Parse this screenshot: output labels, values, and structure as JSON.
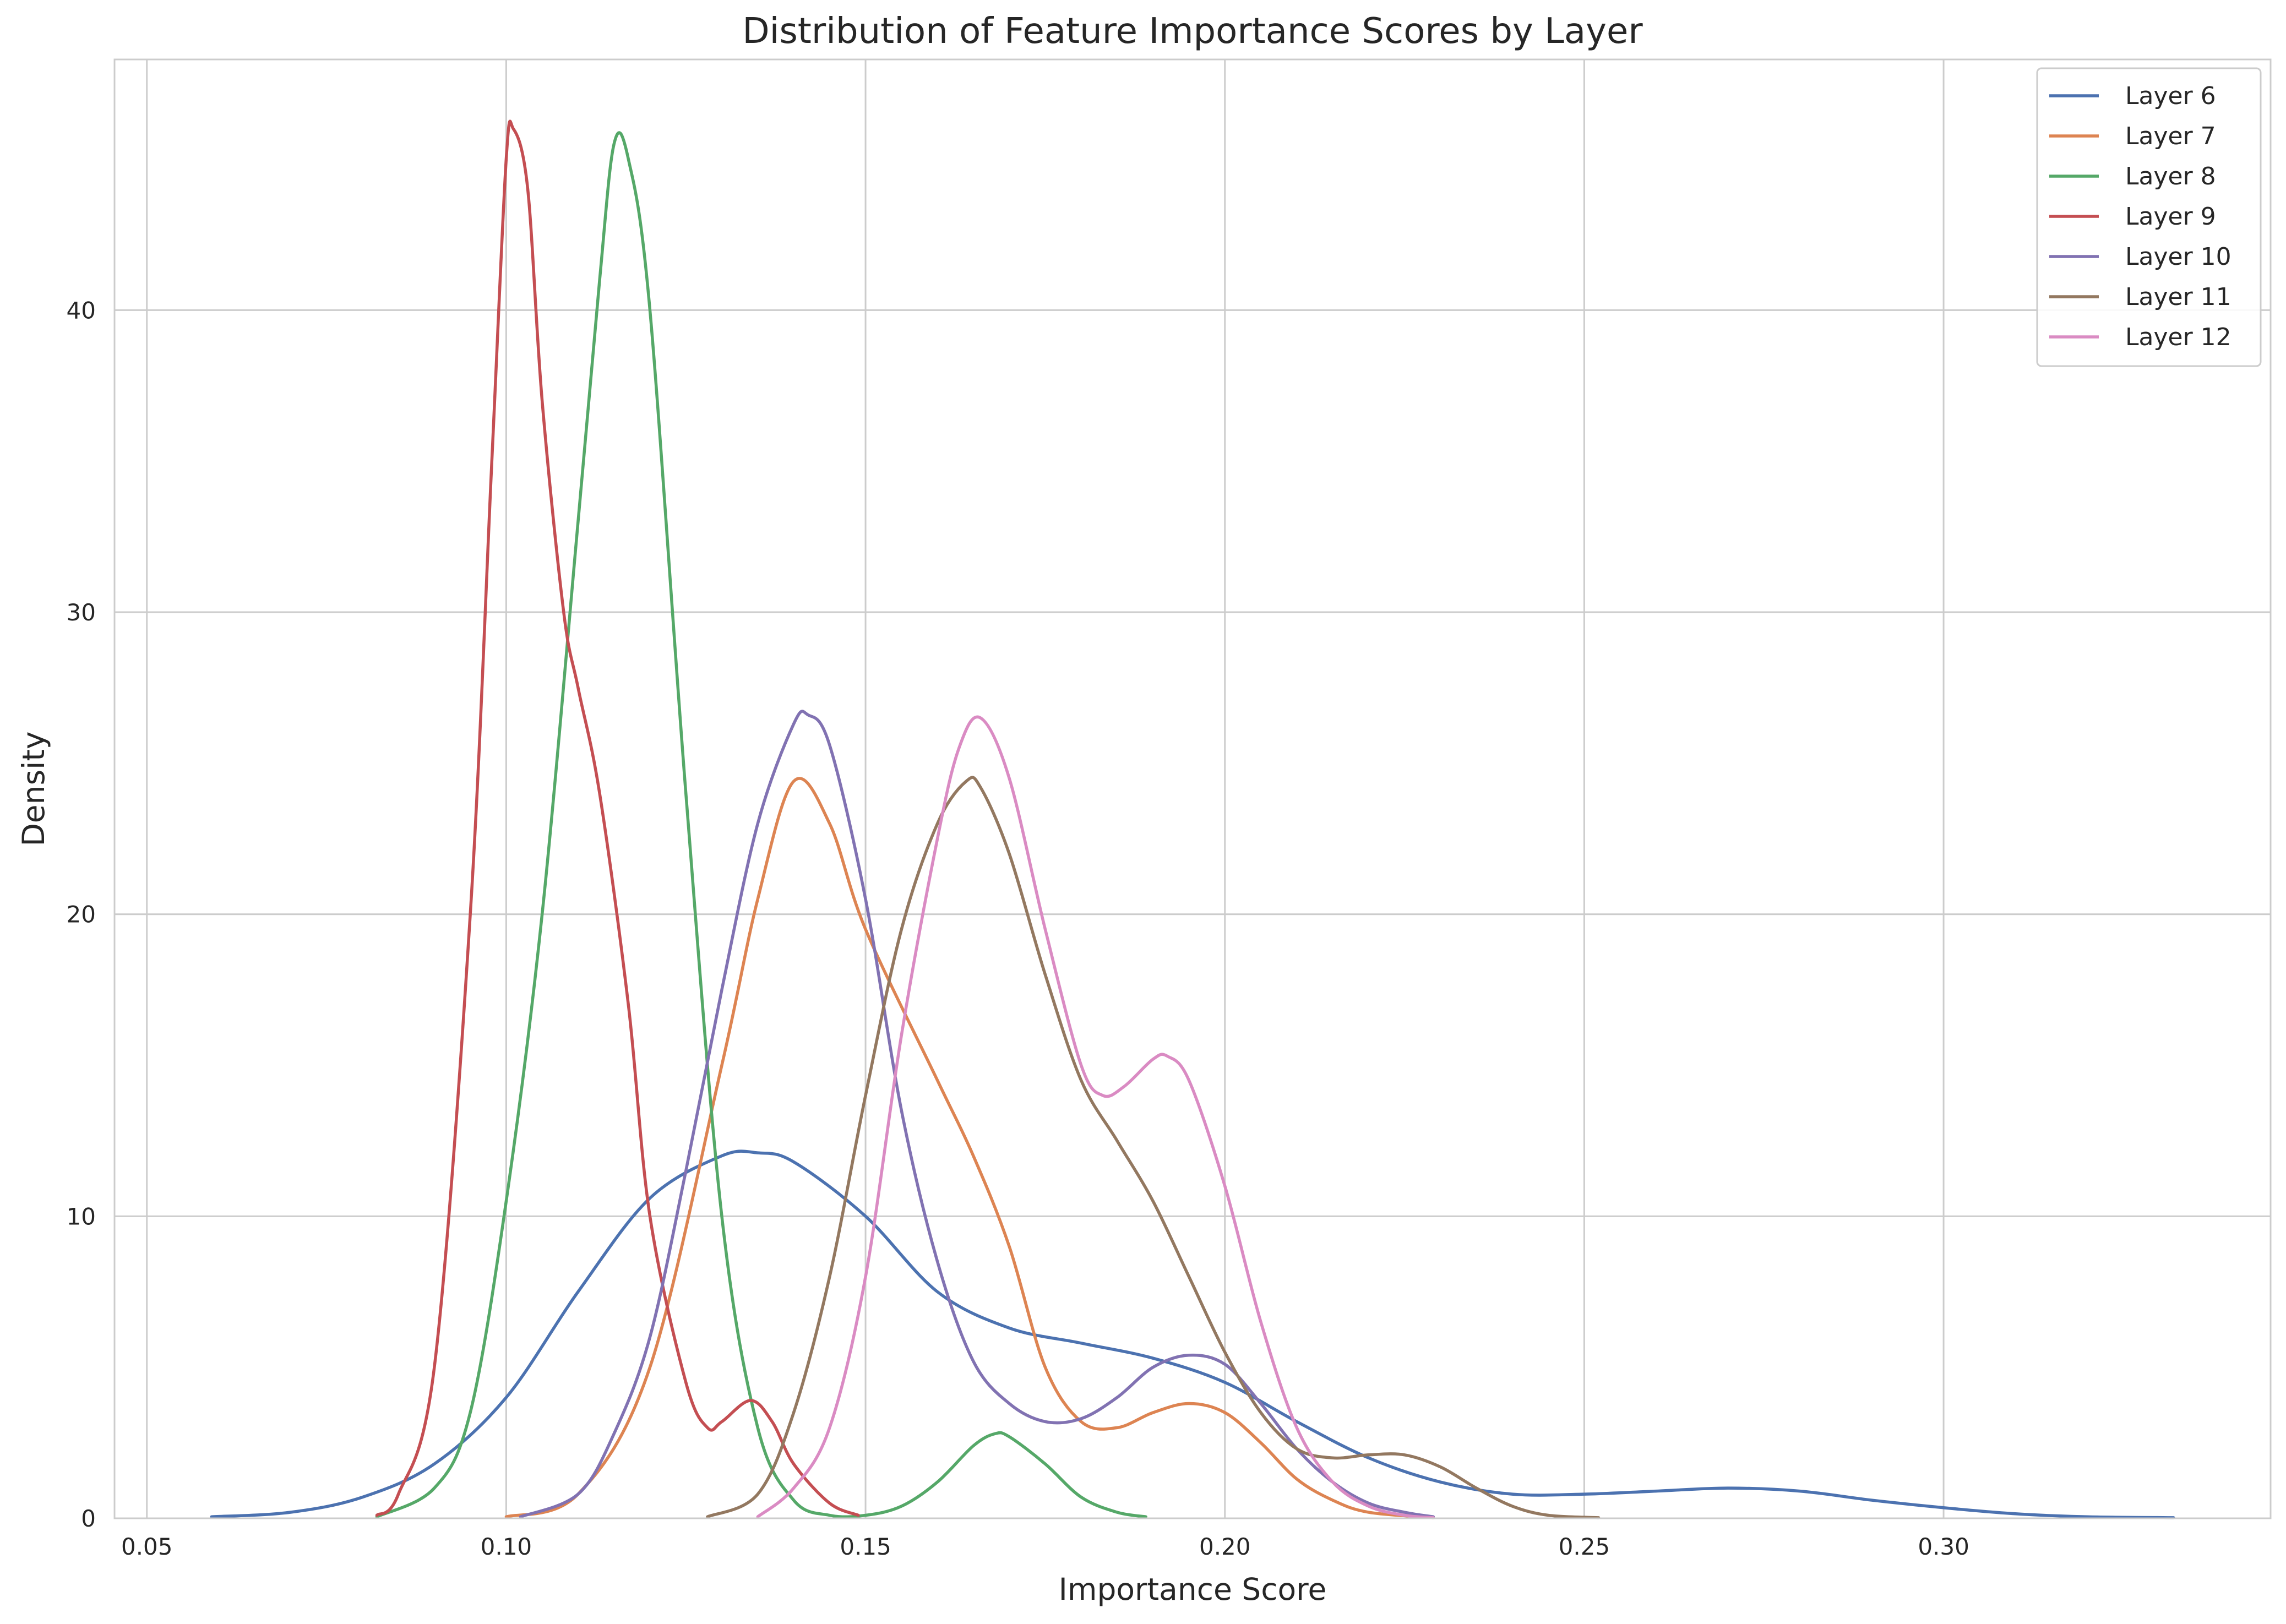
{
  "chart_data": {
    "type": "line",
    "title": "Distribution of Feature Importance Scores by Layer",
    "xlabel": "Importance Score",
    "ylabel": "Density",
    "xlim": [
      0.0455,
      0.3455
    ],
    "ylim": [
      0,
      48.3
    ],
    "x_ticks": [
      0.05,
      0.1,
      0.15,
      0.2,
      0.25,
      0.3
    ],
    "x_tick_labels": [
      "0.05",
      "0.10",
      "0.15",
      "0.20",
      "0.25",
      "0.30"
    ],
    "y_ticks": [
      0,
      10,
      20,
      30,
      40
    ],
    "y_tick_labels": [
      "0",
      "10",
      "20",
      "30",
      "40"
    ],
    "grid": true,
    "legend_position": "top-right",
    "series": [
      {
        "name": "Layer 6",
        "color": "#4c72b0",
        "points": [
          [
            0.059,
            0.05
          ],
          [
            0.07,
            0.2
          ],
          [
            0.08,
            0.7
          ],
          [
            0.09,
            1.8
          ],
          [
            0.1,
            4.0
          ],
          [
            0.11,
            7.5
          ],
          [
            0.12,
            10.6
          ],
          [
            0.13,
            12.0
          ],
          [
            0.135,
            12.1
          ],
          [
            0.14,
            11.8
          ],
          [
            0.15,
            10.0
          ],
          [
            0.16,
            7.5
          ],
          [
            0.17,
            6.3
          ],
          [
            0.18,
            5.8
          ],
          [
            0.19,
            5.3
          ],
          [
            0.2,
            4.5
          ],
          [
            0.21,
            3.2
          ],
          [
            0.22,
            2.0
          ],
          [
            0.23,
            1.2
          ],
          [
            0.24,
            0.8
          ],
          [
            0.25,
            0.8
          ],
          [
            0.26,
            0.9
          ],
          [
            0.27,
            1.0
          ],
          [
            0.28,
            0.9
          ],
          [
            0.29,
            0.6
          ],
          [
            0.3,
            0.35
          ],
          [
            0.31,
            0.15
          ],
          [
            0.32,
            0.05
          ],
          [
            0.332,
            0.02
          ]
        ]
      },
      {
        "name": "Layer 7",
        "color": "#dd8452",
        "points": [
          [
            0.1,
            0.05
          ],
          [
            0.11,
            0.8
          ],
          [
            0.12,
            5.0
          ],
          [
            0.13,
            15.0
          ],
          [
            0.135,
            20.5
          ],
          [
            0.14,
            24.4
          ],
          [
            0.145,
            23.0
          ],
          [
            0.15,
            19.5
          ],
          [
            0.16,
            14.5
          ],
          [
            0.165,
            12.0
          ],
          [
            0.17,
            9.0
          ],
          [
            0.175,
            5.0
          ],
          [
            0.18,
            3.2
          ],
          [
            0.185,
            3.0
          ],
          [
            0.19,
            3.5
          ],
          [
            0.195,
            3.8
          ],
          [
            0.2,
            3.5
          ],
          [
            0.205,
            2.5
          ],
          [
            0.21,
            1.3
          ],
          [
            0.215,
            0.6
          ],
          [
            0.22,
            0.2
          ],
          [
            0.229,
            0.02
          ]
        ]
      },
      {
        "name": "Layer 8",
        "color": "#55a868",
        "points": [
          [
            0.082,
            0.05
          ],
          [
            0.09,
            1.0
          ],
          [
            0.095,
            3.5
          ],
          [
            0.1,
            10.5
          ],
          [
            0.105,
            20.0
          ],
          [
            0.11,
            33.0
          ],
          [
            0.113,
            41.0
          ],
          [
            0.115,
            45.5
          ],
          [
            0.117,
            45.0
          ],
          [
            0.12,
            40.0
          ],
          [
            0.125,
            24.0
          ],
          [
            0.13,
            10.0
          ],
          [
            0.135,
            3.0
          ],
          [
            0.14,
            0.6
          ],
          [
            0.145,
            0.1
          ],
          [
            0.15,
            0.1
          ],
          [
            0.155,
            0.4
          ],
          [
            0.16,
            1.2
          ],
          [
            0.165,
            2.4
          ],
          [
            0.168,
            2.8
          ],
          [
            0.17,
            2.7
          ],
          [
            0.175,
            1.8
          ],
          [
            0.18,
            0.7
          ],
          [
            0.185,
            0.2
          ],
          [
            0.189,
            0.05
          ]
        ]
      },
      {
        "name": "Layer 9",
        "color": "#c44e52",
        "points": [
          [
            0.082,
            0.1
          ],
          [
            0.085,
            0.8
          ],
          [
            0.09,
            5.0
          ],
          [
            0.095,
            20.0
          ],
          [
            0.098,
            35.0
          ],
          [
            0.1,
            45.0
          ],
          [
            0.101,
            46.0
          ],
          [
            0.103,
            44.0
          ],
          [
            0.105,
            37.0
          ],
          [
            0.108,
            30.0
          ],
          [
            0.11,
            27.5
          ],
          [
            0.113,
            24.0
          ],
          [
            0.117,
            17.0
          ],
          [
            0.12,
            10.0
          ],
          [
            0.125,
            4.5
          ],
          [
            0.128,
            3.0
          ],
          [
            0.13,
            3.2
          ],
          [
            0.134,
            3.9
          ],
          [
            0.137,
            3.2
          ],
          [
            0.14,
            1.8
          ],
          [
            0.145,
            0.5
          ],
          [
            0.149,
            0.1
          ]
        ]
      },
      {
        "name": "Layer 10",
        "color": "#8172b2",
        "points": [
          [
            0.102,
            0.05
          ],
          [
            0.11,
            0.8
          ],
          [
            0.115,
            2.8
          ],
          [
            0.12,
            6.0
          ],
          [
            0.125,
            11.5
          ],
          [
            0.13,
            17.5
          ],
          [
            0.135,
            23.0
          ],
          [
            0.14,
            26.3
          ],
          [
            0.142,
            26.6
          ],
          [
            0.145,
            25.6
          ],
          [
            0.15,
            20.5
          ],
          [
            0.155,
            13.5
          ],
          [
            0.16,
            8.5
          ],
          [
            0.165,
            5.2
          ],
          [
            0.17,
            3.8
          ],
          [
            0.175,
            3.2
          ],
          [
            0.18,
            3.3
          ],
          [
            0.185,
            4.0
          ],
          [
            0.19,
            5.0
          ],
          [
            0.195,
            5.4
          ],
          [
            0.2,
            5.1
          ],
          [
            0.205,
            3.8
          ],
          [
            0.21,
            2.3
          ],
          [
            0.215,
            1.2
          ],
          [
            0.22,
            0.5
          ],
          [
            0.225,
            0.2
          ],
          [
            0.229,
            0.05
          ]
        ]
      },
      {
        "name": "Layer 11",
        "color": "#937860",
        "points": [
          [
            0.128,
            0.05
          ],
          [
            0.135,
            0.8
          ],
          [
            0.14,
            3.5
          ],
          [
            0.145,
            8.0
          ],
          [
            0.15,
            14.0
          ],
          [
            0.155,
            19.5
          ],
          [
            0.16,
            23.0
          ],
          [
            0.164,
            24.4
          ],
          [
            0.166,
            24.2
          ],
          [
            0.17,
            22.0
          ],
          [
            0.175,
            18.0
          ],
          [
            0.18,
            14.5
          ],
          [
            0.185,
            12.5
          ],
          [
            0.19,
            10.5
          ],
          [
            0.195,
            8.0
          ],
          [
            0.2,
            5.5
          ],
          [
            0.205,
            3.5
          ],
          [
            0.21,
            2.3
          ],
          [
            0.215,
            2.0
          ],
          [
            0.22,
            2.1
          ],
          [
            0.225,
            2.1
          ],
          [
            0.23,
            1.7
          ],
          [
            0.235,
            1.0
          ],
          [
            0.24,
            0.4
          ],
          [
            0.245,
            0.1
          ],
          [
            0.252,
            0.02
          ]
        ]
      },
      {
        "name": "Layer 12",
        "color": "#da8bc3",
        "points": [
          [
            0.135,
            0.05
          ],
          [
            0.14,
            1.0
          ],
          [
            0.145,
            3.0
          ],
          [
            0.15,
            8.0
          ],
          [
            0.155,
            16.0
          ],
          [
            0.16,
            22.5
          ],
          [
            0.163,
            25.5
          ],
          [
            0.166,
            26.5
          ],
          [
            0.17,
            24.5
          ],
          [
            0.175,
            19.5
          ],
          [
            0.18,
            15.0
          ],
          [
            0.183,
            14.0
          ],
          [
            0.186,
            14.3
          ],
          [
            0.19,
            15.2
          ],
          [
            0.192,
            15.3
          ],
          [
            0.195,
            14.5
          ],
          [
            0.2,
            11.0
          ],
          [
            0.205,
            6.5
          ],
          [
            0.21,
            3.0
          ],
          [
            0.215,
            1.2
          ],
          [
            0.22,
            0.4
          ],
          [
            0.225,
            0.1
          ],
          [
            0.229,
            0.02
          ]
        ]
      }
    ]
  }
}
